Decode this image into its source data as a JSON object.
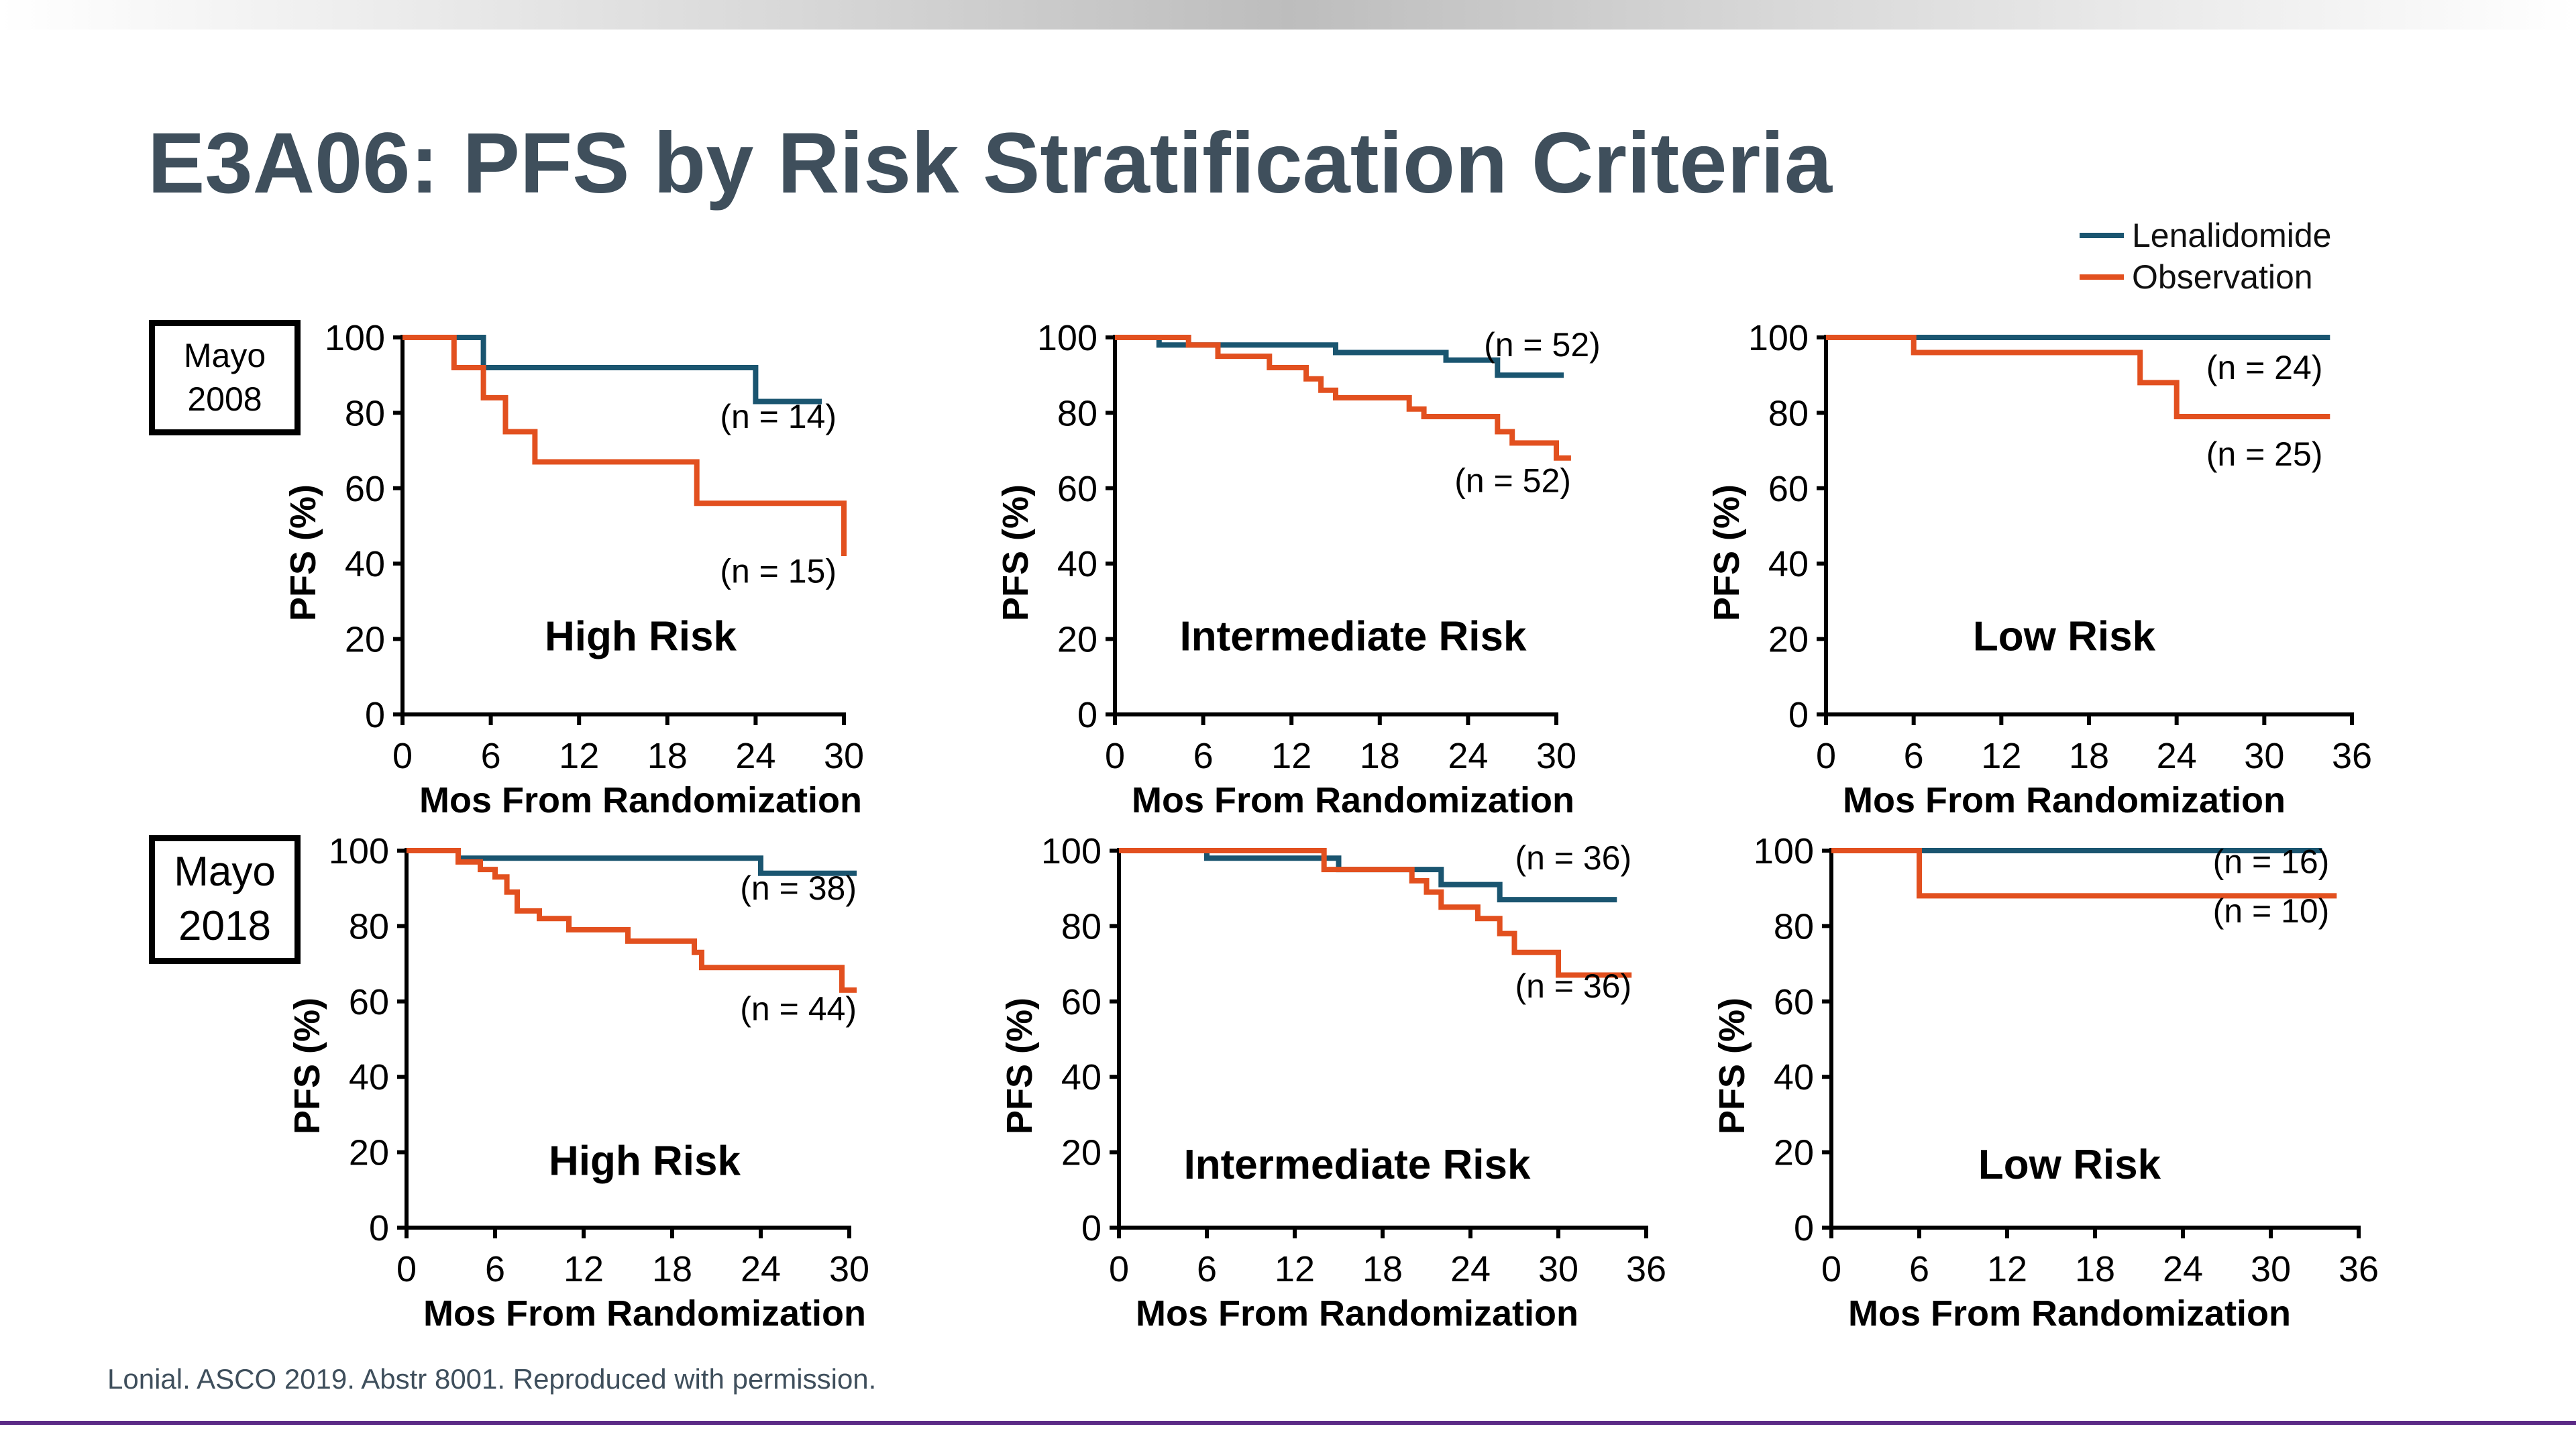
{
  "title": "E3A06: PFS by Risk Stratification Criteria",
  "footer": "Lonial. ASCO 2019. Abstr 8001. Reproduced with permission.",
  "colors": {
    "lenalidomide": "#1a5570",
    "observation": "#e2501f",
    "title": "#3f4f5c",
    "accent_line": "#5b2a86"
  },
  "legend": [
    {
      "label": "Lenalidomide",
      "color": "#1a5570"
    },
    {
      "label": "Observation",
      "color": "#e2501f"
    }
  ],
  "row_labels": [
    {
      "line1": "Mayo",
      "line2": "2008"
    },
    {
      "line1": "Mayo",
      "line2": "2018"
    }
  ],
  "chart_data": [
    {
      "type": "line",
      "step": true,
      "row_label": "Mayo 2008",
      "panel_title": "High Risk",
      "xlabel": "Mos From Randomization",
      "ylabel": "PFS (%)",
      "xlim": [
        0,
        30
      ],
      "ylim": [
        0,
        100
      ],
      "xticks": [
        0,
        6,
        12,
        18,
        24,
        30
      ],
      "yticks": [
        0,
        20,
        40,
        60,
        80,
        100
      ],
      "series": [
        {
          "name": "Lenalidomide",
          "n_label": "(n = 14)",
          "x": [
            0,
            5.5,
            5.5,
            24,
            24,
            28.5
          ],
          "y": [
            100,
            100,
            92,
            92,
            83,
            83
          ]
        },
        {
          "name": "Observation",
          "n_label": "(n = 15)",
          "x": [
            0,
            3.5,
            3.5,
            5.5,
            5.5,
            7,
            7,
            9,
            9,
            20,
            20,
            30,
            30
          ],
          "y": [
            100,
            100,
            92,
            92,
            84,
            84,
            75,
            75,
            67,
            67,
            56,
            56,
            42
          ]
        }
      ]
    },
    {
      "type": "line",
      "step": true,
      "row_label": "Mayo 2008",
      "panel_title": "Intermediate Risk",
      "xlabel": "Mos From Randomization",
      "ylabel": "PFS (%)",
      "xlim": [
        0,
        30
      ],
      "ylim": [
        0,
        100
      ],
      "xticks": [
        0,
        6,
        12,
        18,
        24,
        30
      ],
      "yticks": [
        0,
        20,
        40,
        60,
        80,
        100
      ],
      "series": [
        {
          "name": "Lenalidomide",
          "n_label": "(n = 52)",
          "x": [
            0,
            3,
            3,
            15,
            15,
            22.5,
            22.5,
            26,
            26,
            30.5
          ],
          "y": [
            100,
            100,
            98,
            98,
            96,
            96,
            94,
            94,
            90,
            90
          ]
        },
        {
          "name": "Observation",
          "n_label": "(n = 52)",
          "x": [
            0,
            5,
            5,
            7,
            7,
            10.5,
            10.5,
            13,
            13,
            14,
            14,
            15,
            15,
            20,
            20,
            21,
            21,
            26,
            26,
            27,
            27,
            30,
            30,
            31
          ],
          "y": [
            100,
            100,
            98,
            98,
            95,
            95,
            92,
            92,
            89,
            89,
            86,
            86,
            84,
            84,
            81,
            81,
            79,
            79,
            75,
            75,
            72,
            72,
            68,
            68
          ]
        }
      ]
    },
    {
      "type": "line",
      "step": true,
      "row_label": "Mayo 2008",
      "panel_title": "Low Risk",
      "xlabel": "Mos From Randomization",
      "ylabel": "PFS (%)",
      "xlim": [
        0,
        36
      ],
      "ylim": [
        0,
        100
      ],
      "xticks": [
        0,
        6,
        12,
        18,
        24,
        30,
        36
      ],
      "yticks": [
        0,
        20,
        40,
        60,
        80,
        100
      ],
      "series": [
        {
          "name": "Lenalidomide",
          "n_label": "(n = 24)",
          "x": [
            0,
            34.5
          ],
          "y": [
            100,
            100
          ]
        },
        {
          "name": "Observation",
          "n_label": "(n = 25)",
          "x": [
            0,
            6,
            6,
            21.5,
            21.5,
            24,
            24,
            34.5
          ],
          "y": [
            100,
            100,
            96,
            96,
            88,
            88,
            79,
            79
          ]
        }
      ]
    },
    {
      "type": "line",
      "step": true,
      "row_label": "Mayo 2018",
      "panel_title": "High Risk",
      "xlabel": "Mos From Randomization",
      "ylabel": "PFS (%)",
      "xlim": [
        0,
        30
      ],
      "ylim": [
        0,
        100
      ],
      "xticks": [
        0,
        6,
        12,
        18,
        24,
        30
      ],
      "yticks": [
        0,
        20,
        40,
        60,
        80,
        100
      ],
      "series": [
        {
          "name": "Lenalidomide",
          "n_label": "(n = 38)",
          "x": [
            0,
            3.5,
            3.5,
            24,
            24,
            30.5
          ],
          "y": [
            100,
            100,
            98,
            98,
            94,
            94
          ]
        },
        {
          "name": "Observation",
          "n_label": "(n = 44)",
          "x": [
            0,
            3.5,
            3.5,
            5,
            5,
            6,
            6,
            6.8,
            6.8,
            7.5,
            7.5,
            9,
            9,
            11,
            11,
            15,
            15,
            19.5,
            19.5,
            20,
            20,
            29.5,
            29.5,
            30.5
          ],
          "y": [
            100,
            100,
            97,
            97,
            95,
            95,
            93,
            93,
            89,
            89,
            84,
            84,
            82,
            82,
            79,
            79,
            76,
            76,
            73,
            73,
            69,
            69,
            63,
            63
          ]
        }
      ]
    },
    {
      "type": "line",
      "step": true,
      "row_label": "Mayo 2018",
      "panel_title": "Intermediate Risk",
      "xlabel": "Mos From Randomization",
      "ylabel": "PFS (%)",
      "xlim": [
        0,
        36
      ],
      "ylim": [
        0,
        100
      ],
      "xticks": [
        0,
        6,
        12,
        18,
        24,
        30,
        36
      ],
      "yticks": [
        0,
        20,
        40,
        60,
        80,
        100
      ],
      "series": [
        {
          "name": "Lenalidomide",
          "n_label": "(n = 36)",
          "x": [
            0,
            6,
            6,
            15,
            15,
            22,
            22,
            26,
            26,
            34
          ],
          "y": [
            100,
            100,
            98,
            98,
            95,
            95,
            91,
            91,
            87,
            87
          ]
        },
        {
          "name": "Observation",
          "n_label": "(n = 36)",
          "x": [
            0,
            14,
            14,
            20,
            20,
            21,
            21,
            22,
            22,
            24.5,
            24.5,
            26,
            26,
            27,
            27,
            30,
            30,
            35
          ],
          "y": [
            100,
            100,
            95,
            95,
            92,
            92,
            89,
            89,
            85,
            85,
            82,
            82,
            78,
            78,
            73,
            73,
            67,
            67
          ]
        }
      ]
    },
    {
      "type": "line",
      "step": true,
      "row_label": "Mayo 2018",
      "panel_title": "Low Risk",
      "xlabel": "Mos From Randomization",
      "ylabel": "PFS (%)",
      "xlim": [
        0,
        36
      ],
      "ylim": [
        0,
        100
      ],
      "xticks": [
        0,
        6,
        12,
        18,
        24,
        30,
        36
      ],
      "yticks": [
        0,
        20,
        40,
        60,
        80,
        100
      ],
      "series": [
        {
          "name": "Lenalidomide",
          "n_label": "(n = 16)",
          "x": [
            0,
            33.5
          ],
          "y": [
            100,
            100
          ]
        },
        {
          "name": "Observation",
          "n_label": "(n = 10)",
          "x": [
            0,
            6,
            6,
            34.5
          ],
          "y": [
            100,
            100,
            88,
            88
          ]
        }
      ]
    }
  ]
}
